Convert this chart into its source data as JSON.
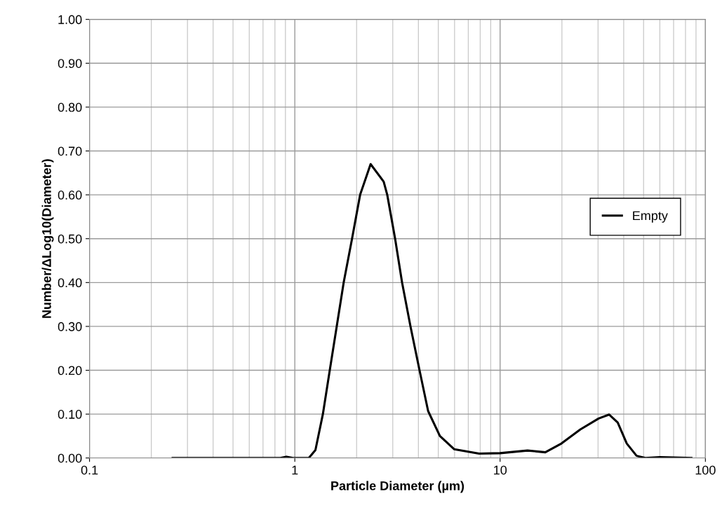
{
  "chart_data": {
    "type": "line",
    "xlabel": "Particle Diameter (µm)",
    "ylabel": "Number/ΔLog10(Diameter)",
    "log": "x",
    "grid": true,
    "legend": "right",
    "marker": "none",
    "line_style": "solid",
    "xlim": [
      0.1,
      100
    ],
    "xticks": [
      0.1,
      1,
      10,
      100
    ],
    "ylim": [
      0,
      1
    ],
    "yticks": [
      {
        "value": 0,
        "label": "0.00"
      },
      {
        "value": 0.1,
        "label": "0.10"
      },
      {
        "value": 0.2,
        "label": "0.20"
      },
      {
        "value": 0.3,
        "label": "0.30"
      },
      {
        "value": 0.4,
        "label": "0.40"
      },
      {
        "value": 0.5,
        "label": "0.50"
      },
      {
        "value": 0.6,
        "label": "0.60"
      },
      {
        "value": 0.7,
        "label": "0.70"
      },
      {
        "value": 0.8,
        "label": "0.80"
      },
      {
        "value": 0.9,
        "label": "0.90"
      },
      {
        "value": 1,
        "label": "1.00"
      }
    ],
    "series": [
      {
        "name": "Empty",
        "color": "#000000",
        "x": [
          0.254,
          0.5,
          0.85,
          0.91,
          0.98,
          1.17,
          1.26,
          1.37,
          1.48,
          1.6,
          1.73,
          1.9,
          2.08,
          2.34,
          2.71,
          2.82,
          3.08,
          3.33,
          3.66,
          4.05,
          4.46,
          5.09,
          5.97,
          7.9,
          10,
          13.6,
          16.6,
          19.9,
          24.6,
          30.2,
          34.0,
          37.4,
          41.4,
          46.2,
          51,
          60,
          85.5
        ],
        "values": [
          0,
          0,
          0,
          0.003,
          0,
          0,
          0.018,
          0.1,
          0.2,
          0.3,
          0.4,
          0.5,
          0.6,
          0.67,
          0.63,
          0.6,
          0.5,
          0.4,
          0.3,
          0.2,
          0.107,
          0.05,
          0.02,
          0.01,
          0.011,
          0.017,
          0.013,
          0.033,
          0.065,
          0.09,
          0.099,
          0.081,
          0.033,
          0.005,
          0,
          0.002,
          0
        ]
      }
    ]
  }
}
